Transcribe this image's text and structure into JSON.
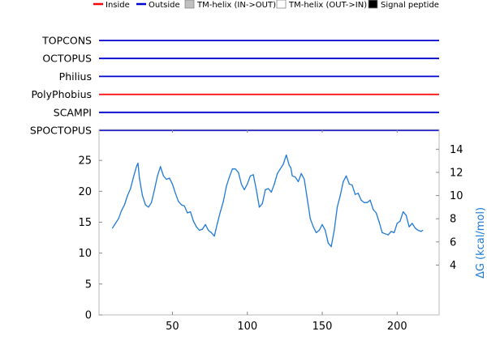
{
  "legend": [
    {
      "label": "Inside",
      "color": "#ff0000",
      "kind": "line"
    },
    {
      "label": "Outside",
      "color": "#0000cc",
      "kind": "line"
    },
    {
      "label": "TM-helix (IN->OUT)",
      "color": "#bfbfbf",
      "kind": "box"
    },
    {
      "label": "TM-helix (OUT->IN)",
      "color": "#ffffff",
      "kind": "box"
    },
    {
      "label": "Signal peptide",
      "color": "#000000",
      "kind": "box"
    }
  ],
  "tracks": [
    {
      "name": "TOPCONS",
      "state": "Outside",
      "color": "#0000cc"
    },
    {
      "name": "OCTOPUS",
      "state": "Outside",
      "color": "#0000cc"
    },
    {
      "name": "Philius",
      "state": "Outside",
      "color": "#0000cc"
    },
    {
      "name": "PolyPhobius",
      "state": "Inside",
      "color": "#ff0000"
    },
    {
      "name": "SCAMPI",
      "state": "Outside",
      "color": "#0000cc"
    },
    {
      "name": "SPOCTOPUS",
      "state": "Outside",
      "color": "#0000cc"
    }
  ],
  "chart_data": {
    "type": "line",
    "xlim": [
      1,
      228
    ],
    "ylim": [
      0,
      30
    ],
    "xticks": [
      50,
      100,
      150,
      200
    ],
    "yticks": [
      0,
      5,
      10,
      15,
      20,
      25
    ],
    "y2ticks": [
      4,
      6,
      8,
      10,
      12,
      14
    ],
    "y2lim": [
      -0.3,
      15.7
    ],
    "y2label": "ΔG (kcal/mol)",
    "line_color": "#1f7ad6",
    "series": [
      {
        "axis": "right",
        "x": [
          10,
          12,
          14,
          16,
          18,
          20,
          22,
          24,
          26,
          27,
          28,
          30,
          32,
          34,
          36,
          38,
          40,
          42,
          43,
          44,
          46,
          48,
          50,
          52,
          54,
          56,
          58,
          60,
          62,
          64,
          66,
          68,
          70,
          72,
          74,
          76,
          78,
          80,
          82,
          84,
          86,
          88,
          90,
          92,
          94,
          96,
          98,
          100,
          102,
          104,
          106,
          108,
          110,
          112,
          114,
          116,
          118,
          120,
          122,
          124,
          126,
          128,
          129,
          130,
          132,
          134,
          136,
          138,
          140,
          142,
          144,
          146,
          148,
          150,
          152,
          154,
          156,
          158,
          160,
          162,
          164,
          166,
          168,
          170,
          172,
          174,
          176,
          178,
          180,
          182,
          184,
          186,
          188,
          190,
          192,
          194,
          196,
          198,
          200,
          202,
          204,
          206,
          208,
          210,
          212,
          214,
          216,
          217
        ],
        "y": [
          7.2,
          7.6,
          8.0,
          8.7,
          9.2,
          10.0,
          10.6,
          11.6,
          12.5,
          12.8,
          11.5,
          10.0,
          9.2,
          9.0,
          9.4,
          10.5,
          11.7,
          12.5,
          12.1,
          11.7,
          11.4,
          11.5,
          11.0,
          10.2,
          9.5,
          9.2,
          9.1,
          8.5,
          8.6,
          7.8,
          7.3,
          7.0,
          7.1,
          7.5,
          7.0,
          6.8,
          6.5,
          7.6,
          8.6,
          9.5,
          10.8,
          11.6,
          12.3,
          12.3,
          12.0,
          11.0,
          10.5,
          11.0,
          11.7,
          11.8,
          10.5,
          9.0,
          9.3,
          10.5,
          10.6,
          10.3,
          11.0,
          11.9,
          12.3,
          12.7,
          13.5,
          12.6,
          12.4,
          11.7,
          11.6,
          11.2,
          11.9,
          11.4,
          9.7,
          8.0,
          7.3,
          6.8,
          7.0,
          7.5,
          7.0,
          5.9,
          5.6,
          7.0,
          9.0,
          10.0,
          11.2,
          11.7,
          11.0,
          10.9,
          10.1,
          10.2,
          9.6,
          9.4,
          9.4,
          9.6,
          8.8,
          8.5,
          7.7,
          6.8,
          6.7,
          6.6,
          6.9,
          6.8,
          7.6,
          7.8,
          8.6,
          8.3,
          7.3,
          7.6,
          7.2,
          7.0,
          6.9,
          7.0
        ]
      }
    ]
  }
}
